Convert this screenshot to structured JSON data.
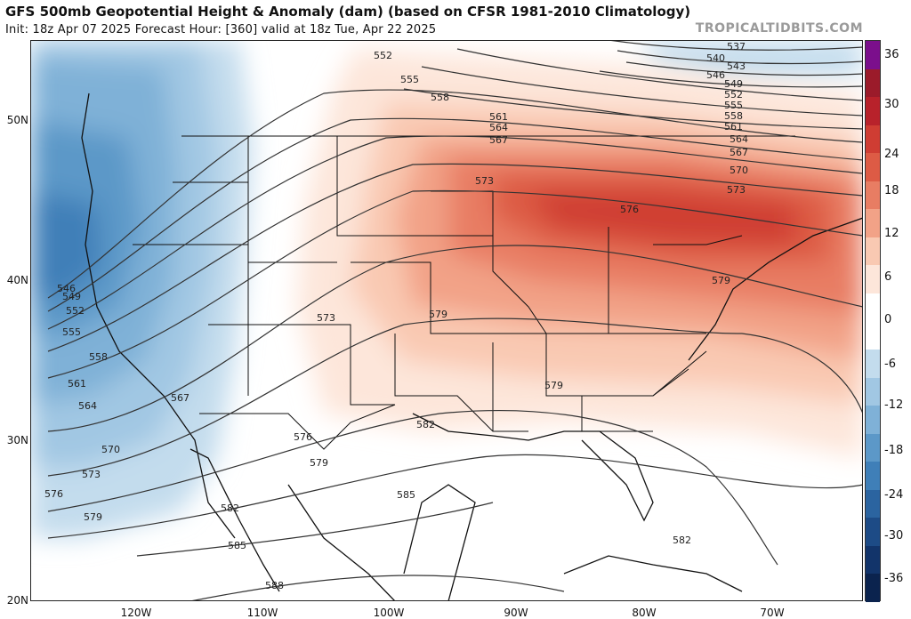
{
  "header": {
    "title": "GFS 500mb Geopotential Height & Anomaly (dam) (based on CFSR 1981-2010 Climatology)",
    "subtitle": "Init: 18z Apr 07 2025   Forecast Hour: [360]   valid at 18z Tue, Apr 22 2025",
    "brand": "TROPICALTIDBITS.COM"
  },
  "axes": {
    "lat_labels": [
      "50N",
      "40N",
      "30N",
      "20N"
    ],
    "lon_labels": [
      "120W",
      "110W",
      "100W",
      "90W",
      "80W",
      "70W"
    ]
  },
  "colorbar": {
    "labels": [
      "36",
      "30",
      "24",
      "18",
      "12",
      "6",
      "0",
      "-6",
      "-12",
      "-18",
      "-24",
      "-30",
      "-36"
    ],
    "colors": [
      "#7b0f8c",
      "#9b1b2a",
      "#b8222b",
      "#cf3d33",
      "#dd5b45",
      "#e87d63",
      "#f2a287",
      "#f9c9b2",
      "#fde6da",
      "#ffffff",
      "#ffffff",
      "#c3dced",
      "#a1c7e3",
      "#7fb1d7",
      "#5c98c8",
      "#3f7fb8",
      "#2b64a0",
      "#1d4b86",
      "#12346a",
      "#0b234e"
    ]
  },
  "chart_data": {
    "type": "map",
    "title": "GFS 500mb Geopotential Height & Anomaly (dam) (based on CFSR 1981-2010 Climatology)",
    "field": "500mb geopotential height contours (dam) with anomaly shading (dam)",
    "contour_labels": [
      "537",
      "540",
      "543",
      "546",
      "549",
      "552",
      "555",
      "558",
      "561",
      "564",
      "567",
      "570",
      "573",
      "576",
      "579",
      "582",
      "585",
      "588"
    ],
    "anomaly_range": [
      -36,
      36
    ],
    "colorbar_ticks": [
      36,
      30,
      24,
      18,
      12,
      6,
      0,
      -6,
      -12,
      -18,
      -24,
      -30,
      -36
    ],
    "features": {
      "trough": "negative anomaly over U.S. West Coast and Pacific Northwest (about -18 to -24 dam)",
      "ridge": "positive anomaly over Great Lakes and Northeast (about +18 to +24 dam)"
    },
    "lat_ticks": [
      "50N",
      "40N",
      "30N",
      "20N"
    ],
    "lon_ticks": [
      "120W",
      "110W",
      "100W",
      "90W",
      "80W",
      "70W"
    ]
  }
}
